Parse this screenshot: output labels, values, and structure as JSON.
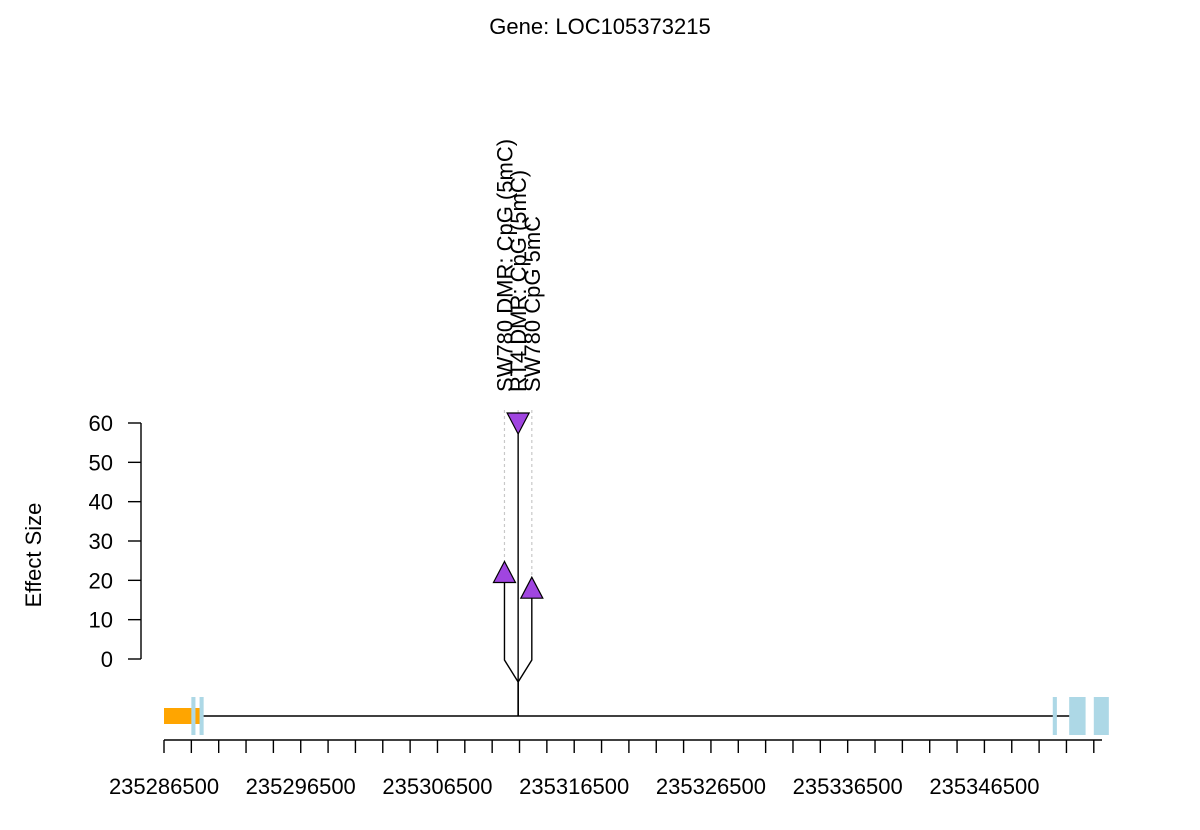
{
  "chart_data": {
    "type": "lollipop",
    "title": "Gene: LOC105373215",
    "ylabel": "Effect Size",
    "xlabel": "",
    "ylim": [
      0,
      60
    ],
    "y_ticks": [
      0,
      10,
      20,
      30,
      40,
      50,
      60
    ],
    "xlim": [
      235286500,
      235355100
    ],
    "x_tick_labels": [
      "235286500",
      "235296500",
      "235306500",
      "235316500",
      "235326500",
      "235336500",
      "235346500"
    ],
    "x_minor_tick_step": 2000,
    "grid": false,
    "colors": {
      "marker": "#a045e0",
      "exon": "#add8e6",
      "utr": "#ffa500"
    },
    "gene_model": {
      "line": [
        235286500,
        235353500
      ],
      "utr": [
        [
          235286500,
          235289200
        ]
      ],
      "exons": [
        [
          235288500,
          235288800
        ],
        [
          235289100,
          235289400
        ],
        [
          235351500,
          235351800
        ],
        [
          235352700,
          235353900
        ],
        [
          235354500,
          235355600
        ]
      ]
    },
    "points": [
      {
        "name": "SW780 DMR: CpG (5mC)",
        "x": 235311400,
        "y": 22,
        "direction": "up"
      },
      {
        "name": "RT4 DMR: CpG (5mC)",
        "x": 235312400,
        "y": 60,
        "direction": "down"
      },
      {
        "name": "SW780 CpG 5mC",
        "x": 235313400,
        "y": 18,
        "direction": "up"
      }
    ]
  }
}
